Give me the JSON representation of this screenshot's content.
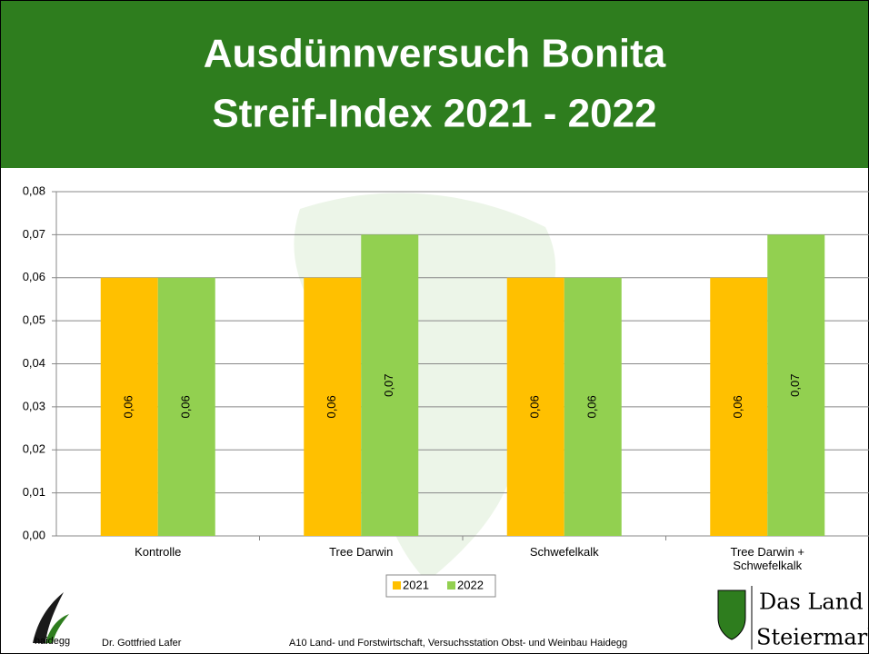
{
  "chart_data": {
    "type": "bar",
    "title": "Ausdünnversuch Bonita",
    "subtitle": "Streif-Index 2021 - 2022",
    "categories": [
      "Kontrolle",
      "Tree Darwin",
      "Schwefelkalk",
      "Tree Darwin + Schwefelkalk"
    ],
    "series": [
      {
        "name": "2021",
        "color": "#ffc000",
        "values": [
          0.06,
          0.06,
          0.06,
          0.06
        ],
        "value_labels": [
          "0,06",
          "0,06",
          "0,06",
          "0,06"
        ]
      },
      {
        "name": "2022",
        "color": "#92d050",
        "values": [
          0.06,
          0.07,
          0.06,
          0.07
        ],
        "value_labels": [
          "0,06",
          "0,07",
          "0,06",
          "0,07"
        ]
      }
    ],
    "ylim": [
      0,
      0.08
    ],
    "yticks": [
      {
        "value": 0,
        "label": "0,00"
      },
      {
        "value": 0.01,
        "label": "0,01"
      },
      {
        "value": 0.02,
        "label": "0,02"
      },
      {
        "value": 0.03,
        "label": "0,03"
      },
      {
        "value": 0.04,
        "label": "0,04"
      },
      {
        "value": 0.05,
        "label": "0,05"
      },
      {
        "value": 0.06,
        "label": "0,06"
      },
      {
        "value": 0.07,
        "label": "0,07"
      },
      {
        "value": 0.08,
        "label": "0,08"
      }
    ],
    "grid": true,
    "legend": "bottom"
  },
  "footer": {
    "logo_text": "haidegg",
    "author": "Dr. Gottfried Lafer",
    "institution": "A10 Land- und Forstwirtschaft, Versuchsstation Obst- und Weinbau Haidegg",
    "brand_line1": "Das Land",
    "brand_line2": "Steiermark"
  }
}
